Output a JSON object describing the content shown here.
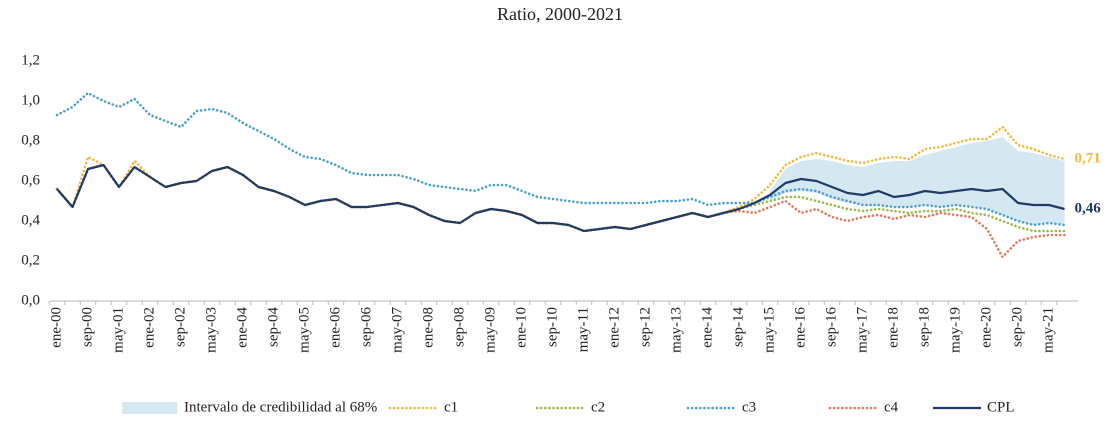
{
  "chart_data": {
    "type": "line",
    "title": "Ratio, 2000-2021",
    "categories": [
      "ene-00",
      null,
      "sep-00",
      null,
      "may-01",
      null,
      "ene-02",
      null,
      "sep-02",
      null,
      "may-03",
      null,
      "ene-04",
      null,
      "sep-04",
      null,
      "may-05",
      null,
      "ene-06",
      null,
      "sep-06",
      null,
      "may-07",
      null,
      "ene-08",
      null,
      "sep-08",
      null,
      "may-09",
      null,
      "ene-10",
      null,
      "sep-10",
      null,
      "may-11",
      null,
      "ene-12",
      null,
      "sep-12",
      null,
      "may-13",
      null,
      "ene-14",
      null,
      "sep-14",
      null,
      "may-15",
      null,
      "ene-16",
      null,
      "sep-16",
      null,
      "may-17",
      null,
      "ene-18",
      null,
      "sep-18",
      null,
      "may-19",
      null,
      "ene-20",
      null,
      "sep-20",
      null,
      "may-21",
      null
    ],
    "band": {
      "name": "Intervalo de credibilidad al 68%",
      "color": "#d5e8f1",
      "lower": [
        null,
        null,
        null,
        null,
        null,
        null,
        null,
        null,
        null,
        null,
        null,
        null,
        null,
        null,
        null,
        null,
        null,
        null,
        null,
        null,
        null,
        null,
        null,
        null,
        null,
        null,
        null,
        null,
        null,
        null,
        null,
        null,
        null,
        null,
        null,
        null,
        null,
        null,
        null,
        null,
        null,
        null,
        null,
        null,
        null,
        null,
        0.5,
        0.54,
        0.55,
        0.54,
        0.51,
        0.49,
        0.48,
        0.48,
        0.47,
        0.47,
        0.48,
        0.47,
        0.48,
        0.47,
        0.46,
        0.43,
        0.4,
        0.38,
        0.39,
        0.38
      ],
      "upper": [
        null,
        null,
        null,
        null,
        null,
        null,
        null,
        null,
        null,
        null,
        null,
        null,
        null,
        null,
        null,
        null,
        null,
        null,
        null,
        null,
        null,
        null,
        null,
        null,
        null,
        null,
        null,
        null,
        null,
        null,
        null,
        null,
        null,
        null,
        null,
        null,
        null,
        null,
        null,
        null,
        null,
        null,
        null,
        null,
        null,
        null,
        0.55,
        0.66,
        0.7,
        0.71,
        0.7,
        0.68,
        0.67,
        0.69,
        0.7,
        0.7,
        0.73,
        0.75,
        0.77,
        0.79,
        0.8,
        0.82,
        0.75,
        0.74,
        0.72,
        0.7
      ]
    },
    "series": [
      {
        "name": "c1",
        "color": "#f2b93b",
        "dash": true,
        "values": [
          0.56,
          0.47,
          0.72,
          0.68,
          0.57,
          0.7,
          0.62,
          0.57,
          0.59,
          0.6,
          0.65,
          0.67,
          0.63,
          0.57,
          0.55,
          0.52,
          0.48,
          0.5,
          0.51,
          0.47,
          0.47,
          0.48,
          0.49,
          0.47,
          0.43,
          0.4,
          0.39,
          0.44,
          0.46,
          0.45,
          0.43,
          0.39,
          0.39,
          0.38,
          0.35,
          0.36,
          0.37,
          0.36,
          0.38,
          0.4,
          0.42,
          0.44,
          0.42,
          0.44,
          0.47,
          0.51,
          0.58,
          0.68,
          0.72,
          0.74,
          0.72,
          0.7,
          0.69,
          0.71,
          0.72,
          0.71,
          0.76,
          0.77,
          0.79,
          0.81,
          0.81,
          0.87,
          0.78,
          0.76,
          0.73,
          0.71
        ],
        "value_labels": [
          null,
          null,
          null,
          null,
          null,
          null,
          null,
          null,
          null,
          null,
          null,
          null,
          null,
          null,
          null,
          null,
          null,
          null,
          null,
          null,
          null,
          null,
          null,
          null,
          null,
          null,
          null,
          null,
          null,
          null,
          null,
          null,
          null,
          null,
          null,
          null,
          null,
          null,
          null,
          null,
          null,
          null,
          null,
          null,
          null,
          null,
          null,
          null,
          null,
          null,
          null,
          null,
          null,
          null,
          null,
          null,
          null,
          null,
          null,
          null,
          null,
          null,
          null,
          null,
          null,
          "0,71"
        ]
      },
      {
        "name": "c2",
        "color": "#9dba4c",
        "dash": true,
        "values": [
          0.56,
          0.47,
          0.66,
          0.68,
          0.57,
          0.67,
          0.62,
          0.57,
          0.59,
          0.6,
          0.65,
          0.67,
          0.63,
          0.57,
          0.55,
          0.52,
          0.48,
          0.5,
          0.51,
          0.47,
          0.47,
          0.48,
          0.49,
          0.47,
          0.43,
          0.4,
          0.39,
          0.44,
          0.46,
          0.45,
          0.43,
          0.39,
          0.39,
          0.38,
          0.35,
          0.36,
          0.37,
          0.36,
          0.38,
          0.4,
          0.42,
          0.44,
          0.42,
          0.44,
          0.46,
          0.48,
          0.5,
          0.52,
          0.52,
          0.5,
          0.48,
          0.46,
          0.45,
          0.46,
          0.45,
          0.44,
          0.45,
          0.45,
          0.46,
          0.44,
          0.43,
          0.4,
          0.37,
          0.35,
          0.35,
          0.35
        ]
      },
      {
        "name": "c3",
        "color": "#4ea2c8",
        "dash": true,
        "values": [
          0.93,
          0.97,
          1.04,
          1.0,
          0.97,
          1.01,
          0.93,
          0.9,
          0.87,
          0.95,
          0.96,
          0.94,
          0.89,
          0.85,
          0.81,
          0.76,
          0.72,
          0.71,
          0.68,
          0.64,
          0.63,
          0.63,
          0.63,
          0.61,
          0.58,
          0.57,
          0.56,
          0.55,
          0.58,
          0.58,
          0.55,
          0.52,
          0.51,
          0.5,
          0.49,
          0.49,
          0.49,
          0.49,
          0.49,
          0.5,
          0.5,
          0.51,
          0.48,
          0.49,
          0.49,
          0.49,
          0.52,
          0.55,
          0.56,
          0.55,
          0.52,
          0.5,
          0.48,
          0.48,
          0.47,
          0.47,
          0.48,
          0.47,
          0.48,
          0.47,
          0.46,
          0.43,
          0.4,
          0.38,
          0.39,
          0.38
        ]
      },
      {
        "name": "c4",
        "color": "#e27b59",
        "dash": true,
        "values": [
          0.56,
          0.47,
          0.66,
          0.68,
          0.57,
          0.67,
          0.62,
          0.57,
          0.59,
          0.6,
          0.65,
          0.67,
          0.63,
          0.57,
          0.55,
          0.52,
          0.48,
          0.5,
          0.51,
          0.47,
          0.47,
          0.48,
          0.49,
          0.47,
          0.43,
          0.4,
          0.39,
          0.44,
          0.46,
          0.45,
          0.43,
          0.39,
          0.39,
          0.38,
          0.35,
          0.36,
          0.37,
          0.36,
          0.38,
          0.4,
          0.42,
          0.44,
          0.42,
          0.44,
          0.45,
          0.44,
          0.47,
          0.5,
          0.44,
          0.46,
          0.42,
          0.4,
          0.42,
          0.43,
          0.41,
          0.43,
          0.42,
          0.44,
          0.43,
          0.42,
          0.36,
          0.22,
          0.3,
          0.32,
          0.33,
          0.33
        ]
      },
      {
        "name": "CPL",
        "color": "#1f3b66",
        "dash": false,
        "values": [
          0.56,
          0.47,
          0.66,
          0.68,
          0.57,
          0.67,
          0.62,
          0.57,
          0.59,
          0.6,
          0.65,
          0.67,
          0.63,
          0.57,
          0.55,
          0.52,
          0.48,
          0.5,
          0.51,
          0.47,
          0.47,
          0.48,
          0.49,
          0.47,
          0.43,
          0.4,
          0.39,
          0.44,
          0.46,
          0.45,
          0.43,
          0.39,
          0.39,
          0.38,
          0.35,
          0.36,
          0.37,
          0.36,
          0.38,
          0.4,
          0.42,
          0.44,
          0.42,
          0.44,
          0.46,
          0.49,
          0.53,
          0.59,
          0.61,
          0.6,
          0.57,
          0.54,
          0.53,
          0.55,
          0.52,
          0.53,
          0.55,
          0.54,
          0.55,
          0.56,
          0.55,
          0.56,
          0.49,
          0.48,
          0.48,
          0.46
        ],
        "value_labels": [
          null,
          null,
          null,
          null,
          null,
          null,
          null,
          null,
          null,
          null,
          null,
          null,
          null,
          null,
          null,
          null,
          null,
          null,
          null,
          null,
          null,
          null,
          null,
          null,
          null,
          null,
          null,
          null,
          null,
          null,
          null,
          null,
          null,
          null,
          null,
          null,
          null,
          null,
          null,
          null,
          null,
          null,
          null,
          null,
          null,
          null,
          null,
          null,
          null,
          null,
          null,
          null,
          null,
          null,
          null,
          null,
          null,
          null,
          null,
          null,
          null,
          null,
          null,
          null,
          null,
          "0,46"
        ]
      }
    ],
    "ylim": [
      0,
      1.2
    ],
    "yticks": [
      {
        "value": 0,
        "label": "0,0"
      },
      {
        "value": 0.2,
        "label": "0,2"
      },
      {
        "value": 0.4,
        "label": "0,4"
      },
      {
        "value": 0.6,
        "label": "0,6"
      },
      {
        "value": 0.8,
        "label": "0,8"
      },
      {
        "value": 1,
        "label": "1,0"
      },
      {
        "value": 1.2,
        "label": "1,2"
      }
    ],
    "legend": "bottom"
  }
}
